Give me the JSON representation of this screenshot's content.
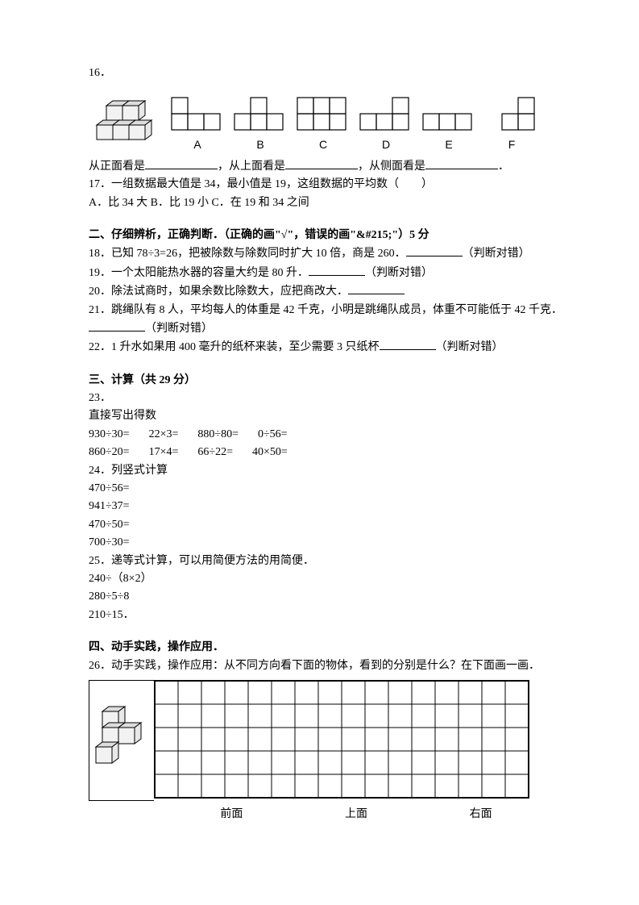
{
  "q16": {
    "number": "16．",
    "options": [
      "A",
      "B",
      "C",
      "D",
      "E",
      "F"
    ],
    "text_parts": [
      "从正面看是",
      "，从上面看是",
      "，从侧面看是",
      "．"
    ]
  },
  "q17": {
    "line1": "17．一组数据最大值是 34，最小值是 19，这组数据的平均数（　　）",
    "line2": "A．比 34 大   B．比 19 小   C．在 19 和 34 之间"
  },
  "sec2": {
    "head": "二、仔细辨析，正确判断．（正确的画\"√\"，错误的画\"&#215;\"）5 分",
    "q18": "18．已知 78÷3=26，把被除数与除数同时扩大 10 倍，商是 260．",
    "q18_suffix": "（判断对错）",
    "q19": "19．一个太阳能热水器的容量大约是 80 升．",
    "q19_suffix": "（判断对错）",
    "q20": "20．除法试商时，如果余数比除数大，应把商改大．",
    "q20_suffix": "",
    "q21": "21．跳绳队有 8 人，平均每人的体重是 42 千克，小明是跳绳队成员，体重不可能低于 42 千克．",
    "q21_suffix": "（判断对错）",
    "q22": "22．1 升水如果用 400 毫升的纸杯来装，至少需要 3 只纸杯",
    "q22_suffix": "（判断对错）"
  },
  "sec3": {
    "head": "三、计算（共 29 分）",
    "q23": "23．",
    "q23_sub": "直接写出得数",
    "row1": [
      "930÷30=",
      "22×3=",
      "880÷80=",
      "0÷56="
    ],
    "row2": [
      "860÷20=",
      "17×4=",
      "66÷22=",
      "40×50="
    ],
    "q24": "24．列竖式计算",
    "q24_items": [
      "470÷56=",
      "941÷37=",
      "470÷50=",
      "700÷30="
    ],
    "q25": "25．递等式计算，可以用简便方法的用简便．",
    "q25_items": [
      "240÷（8×2）",
      "280÷5÷8",
      "210÷15．"
    ]
  },
  "sec4": {
    "head": "四、动手实践，操作应用．",
    "q26": "26．动手实践，操作应用：从不同方向看下面的物体，看到的分别是什么？在下面画一画．",
    "labels": [
      "前面",
      "上面",
      "右面"
    ]
  },
  "styles": {
    "cube_fill": "#f5f5f5",
    "cube_dark": "#cccccc",
    "border_color": "#000000",
    "grid_border": "#000000",
    "grid_cell": 29,
    "grid_cols": 16,
    "grid_rows": 5,
    "font_size": 14,
    "background": "#ffffff"
  }
}
